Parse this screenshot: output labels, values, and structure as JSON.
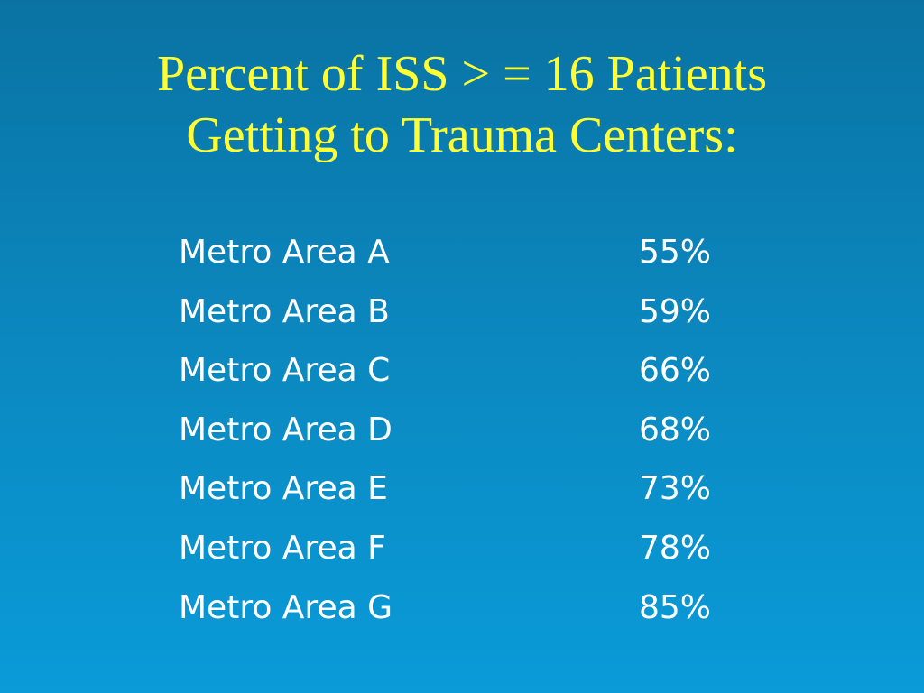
{
  "slide": {
    "title_lines": [
      "Percent of ISS > = 16 Patients",
      "Getting to Trauma Centers:"
    ],
    "rows": [
      {
        "label": "Metro Area A",
        "value": "55%"
      },
      {
        "label": "Metro Area B",
        "value": "59%"
      },
      {
        "label": "Metro Area C",
        "value": "66%"
      },
      {
        "label": "Metro Area D",
        "value": "68%"
      },
      {
        "label": "Metro Area E",
        "value": "73%"
      },
      {
        "label": "Metro Area F",
        "value": "78%"
      },
      {
        "label": "Metro Area G",
        "value": "85%"
      }
    ]
  },
  "colors": {
    "title": "#ffff33",
    "body_text": "#ffffff",
    "background_top": "#0a73a3",
    "background_bottom": "#0a9bd8"
  }
}
